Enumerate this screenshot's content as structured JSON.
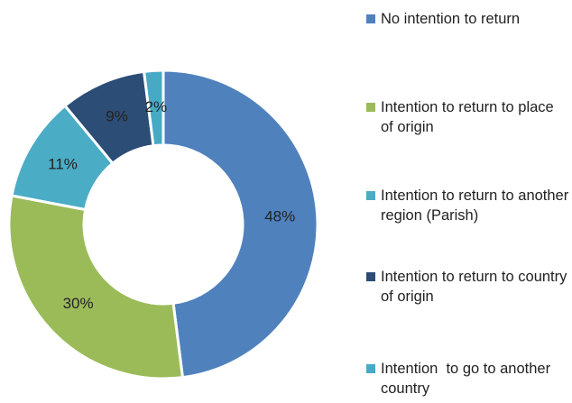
{
  "chart_data": {
    "type": "donut",
    "categories": [
      "No intention to return",
      "Intention to return to place of origin",
      "Intention to return to another region (Parish)",
      "Intention to return to country of origin",
      "Intention  to go to another country"
    ],
    "values": [
      48,
      30,
      11,
      9,
      2
    ],
    "value_labels": [
      "48%",
      "30%",
      "11%",
      "9%",
      "2%"
    ],
    "colors": [
      "#4f81bd",
      "#9bbb59",
      "#4bacc6",
      "#2c4d75",
      "#46aac5"
    ],
    "legend": "right"
  }
}
